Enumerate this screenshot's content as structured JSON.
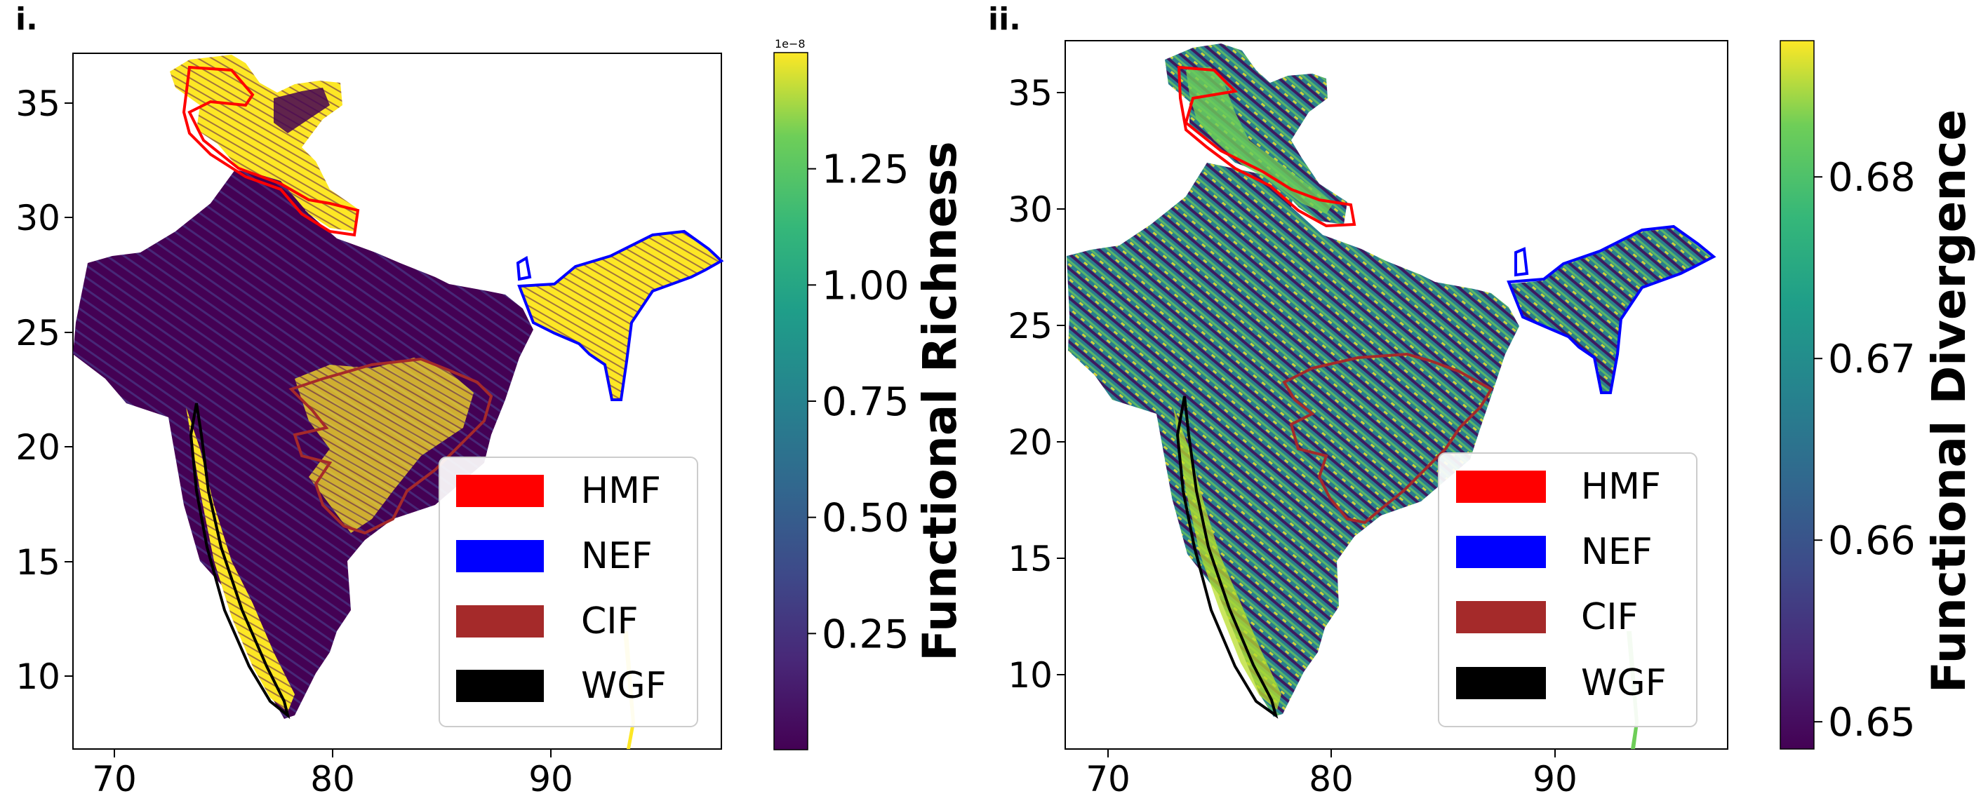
{
  "panels": [
    {
      "label": "i.",
      "colorbar_label": "Functional Richness",
      "colorbar_ticks": [
        "0.25",
        "0.50",
        "0.75",
        "1.00",
        "1.25"
      ],
      "colorbar_multiplier": "1e−8"
    },
    {
      "label": "ii.",
      "colorbar_label": "Functional Divergence",
      "colorbar_ticks": [
        "0.65",
        "0.66",
        "0.67",
        "0.68"
      ],
      "colorbar_multiplier": ""
    }
  ],
  "legend": [
    {
      "label": "HMF",
      "color": "#ff0000"
    },
    {
      "label": "NEF",
      "color": "#0000ff"
    },
    {
      "label": "CIF",
      "color": "#a52a2a"
    },
    {
      "label": "WGF",
      "color": "#000000"
    }
  ],
  "colors": {
    "viridis_low": "#440154",
    "viridis_mid": "#21918c",
    "viridis_high": "#fde725"
  },
  "chart_data": [
    {
      "type": "heatmap",
      "title": "",
      "xlabel": "",
      "ylabel": "",
      "x_ticks": [
        70,
        80,
        90
      ],
      "y_ticks": [
        10,
        15,
        20,
        25,
        30,
        35
      ],
      "xlim": [
        68.2,
        97.5
      ],
      "ylim": [
        6.5,
        37.2
      ],
      "colorbar": {
        "label": "Functional Richness",
        "min": 0.0,
        "max": 1.5e-08,
        "ticks": [
          2.5e-09,
          5e-09,
          7.5e-09,
          1e-08,
          1.25e-08
        ]
      },
      "regions": [
        "HMF",
        "NEF",
        "CIF",
        "WGF"
      ]
    },
    {
      "type": "heatmap",
      "title": "",
      "xlabel": "",
      "ylabel": "",
      "x_ticks": [
        70,
        80,
        90
      ],
      "y_ticks": [
        10,
        15,
        20,
        25,
        30,
        35
      ],
      "xlim": [
        68.2,
        97.5
      ],
      "ylim": [
        6.8,
        37.3
      ],
      "colorbar": {
        "label": "Functional Divergence",
        "min": 0.6485,
        "max": 0.6875,
        "ticks": [
          0.65,
          0.66,
          0.67,
          0.68
        ]
      },
      "regions": [
        "HMF",
        "NEF",
        "CIF",
        "WGF"
      ]
    }
  ]
}
